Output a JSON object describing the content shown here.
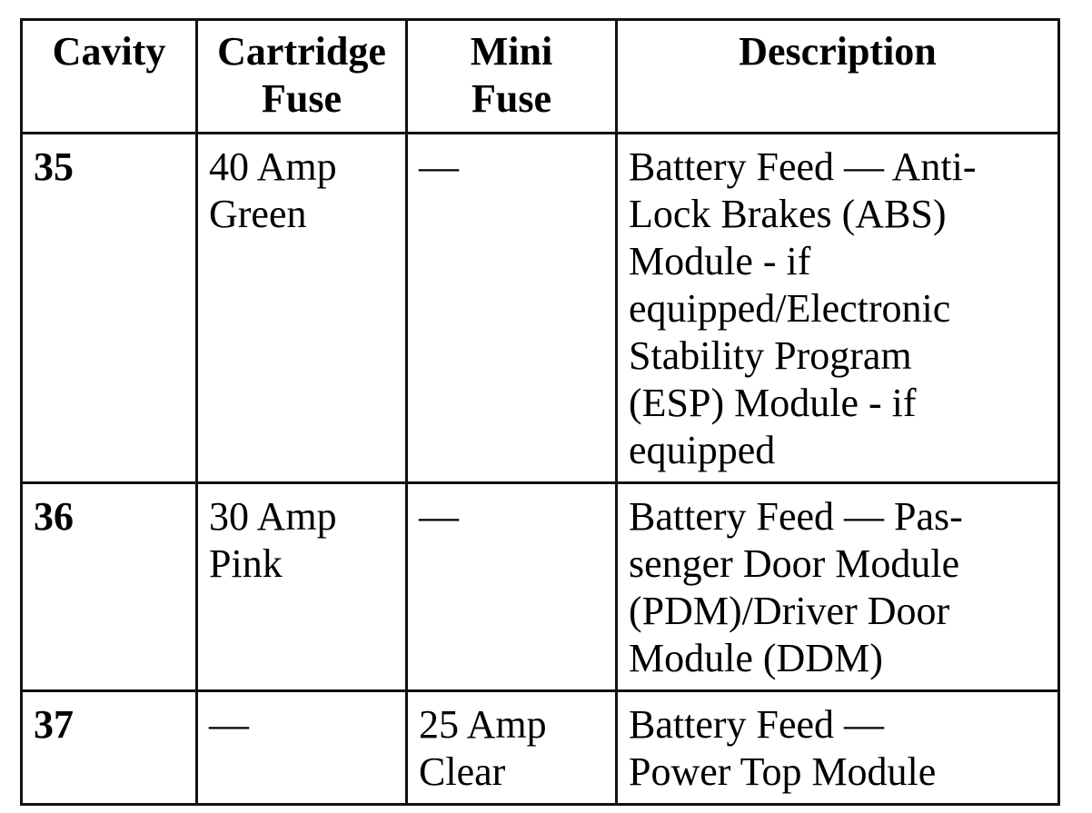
{
  "table": {
    "headers": [
      "Cavity",
      "Cartridge\nFuse",
      "Mini\nFuse",
      "Description"
    ],
    "rows": [
      {
        "cavity": "35",
        "cartridge_fuse": "40 Amp\nGreen",
        "mini_fuse": "—",
        "description": "Battery Feed — Anti-\nLock Brakes (ABS)\nModule - if\nequipped/Electronic\nStability Program\n(ESP) Module - if\nequipped"
      },
      {
        "cavity": "36",
        "cartridge_fuse": "30 Amp\nPink",
        "mini_fuse": "—",
        "description": "Battery Feed — Pas-\nsenger Door Module\n(PDM)/Driver Door\nModule (DDM)"
      },
      {
        "cavity": "37",
        "cartridge_fuse": "—",
        "mini_fuse": "25 Amp\nClear",
        "description": "Battery Feed —\nPower Top Module"
      }
    ]
  }
}
